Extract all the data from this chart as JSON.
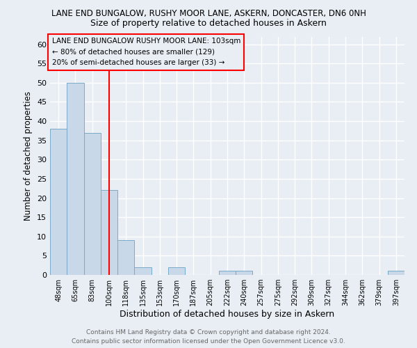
{
  "title": "LANE END BUNGALOW, RUSHY MOOR LANE, ASKERN, DONCASTER, DN6 0NH",
  "subtitle": "Size of property relative to detached houses in Askern",
  "xlabel": "Distribution of detached houses by size in Askern",
  "ylabel": "Number of detached properties",
  "categories": [
    "48sqm",
    "65sqm",
    "83sqm",
    "100sqm",
    "118sqm",
    "135sqm",
    "153sqm",
    "170sqm",
    "187sqm",
    "205sqm",
    "222sqm",
    "240sqm",
    "257sqm",
    "275sqm",
    "292sqm",
    "309sqm",
    "327sqm",
    "344sqm",
    "362sqm",
    "379sqm",
    "397sqm"
  ],
  "values": [
    38,
    50,
    37,
    22,
    9,
    2,
    0,
    2,
    0,
    0,
    1,
    1,
    0,
    0,
    0,
    0,
    0,
    0,
    0,
    0,
    1
  ],
  "bar_color": "#c8d8e8",
  "bar_edge_color": "#7aaac8",
  "red_line_index": 3,
  "ylim": [
    0,
    62
  ],
  "yticks": [
    0,
    5,
    10,
    15,
    20,
    25,
    30,
    35,
    40,
    45,
    50,
    55,
    60
  ],
  "annotation_title": "LANE END BUNGALOW RUSHY MOOR LANE: 103sqm",
  "annotation_line1": "← 80% of detached houses are smaller (129)",
  "annotation_line2": "20% of semi-detached houses are larger (33) →",
  "footer_line1": "Contains HM Land Registry data © Crown copyright and database right 2024.",
  "footer_line2": "Contains public sector information licensed under the Open Government Licence v3.0.",
  "background_color": "#e8eef4",
  "grid_color": "#ffffff"
}
